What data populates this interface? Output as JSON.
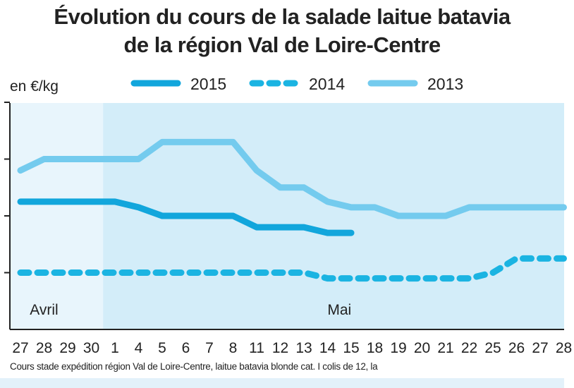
{
  "chart_data": {
    "type": "line",
    "title": "Évolution du cours de la salade laitue batavia",
    "subtitle": "de la région Val de Loire-Centre",
    "ylabel": "en €/kg",
    "xlabel": "",
    "x": [
      "27",
      "28",
      "29",
      "30",
      "1",
      "4",
      "5",
      "6",
      "7",
      "8",
      "11",
      "12",
      "13",
      "14",
      "15",
      "18",
      "19",
      "20",
      "21",
      "22",
      "25",
      "26",
      "27",
      "28"
    ],
    "month_labels": [
      {
        "label": "Avril",
        "index": 1
      },
      {
        "label": "Mai",
        "index": 13.5
      }
    ],
    "shaded_from_index": 3.5,
    "ylim": [
      0,
      4
    ],
    "grid": false,
    "legend_position": "top",
    "series": [
      {
        "name": "2015",
        "style": "solid",
        "color": "#12a6dc",
        "values": [
          2.25,
          2.25,
          2.25,
          2.25,
          2.25,
          2.15,
          2.0,
          2.0,
          2.0,
          2.0,
          1.8,
          1.8,
          1.8,
          1.7,
          1.7,
          null,
          null,
          null,
          null,
          null,
          null,
          null,
          null,
          null
        ]
      },
      {
        "name": "2014",
        "style": "dashed",
        "color": "#1bb4e2",
        "values": [
          1.0,
          1.0,
          1.0,
          1.0,
          1.0,
          1.0,
          1.0,
          1.0,
          1.0,
          1.0,
          1.0,
          1.0,
          1.0,
          0.9,
          0.9,
          0.9,
          0.9,
          0.9,
          0.9,
          0.9,
          1.0,
          1.25,
          1.25,
          1.25
        ]
      },
      {
        "name": "2013",
        "style": "solid",
        "color": "#74cbee",
        "values": [
          2.8,
          3.0,
          3.0,
          3.0,
          3.0,
          3.0,
          3.3,
          3.3,
          3.3,
          3.3,
          2.8,
          2.5,
          2.5,
          2.25,
          2.15,
          2.15,
          2.0,
          2.0,
          2.0,
          2.15,
          2.15,
          2.15,
          2.15,
          2.15
        ]
      }
    ]
  },
  "footer": "Cours stade expédition région Val de Loire-Centre, laitue batavia blonde cat. I colis de 12, la"
}
